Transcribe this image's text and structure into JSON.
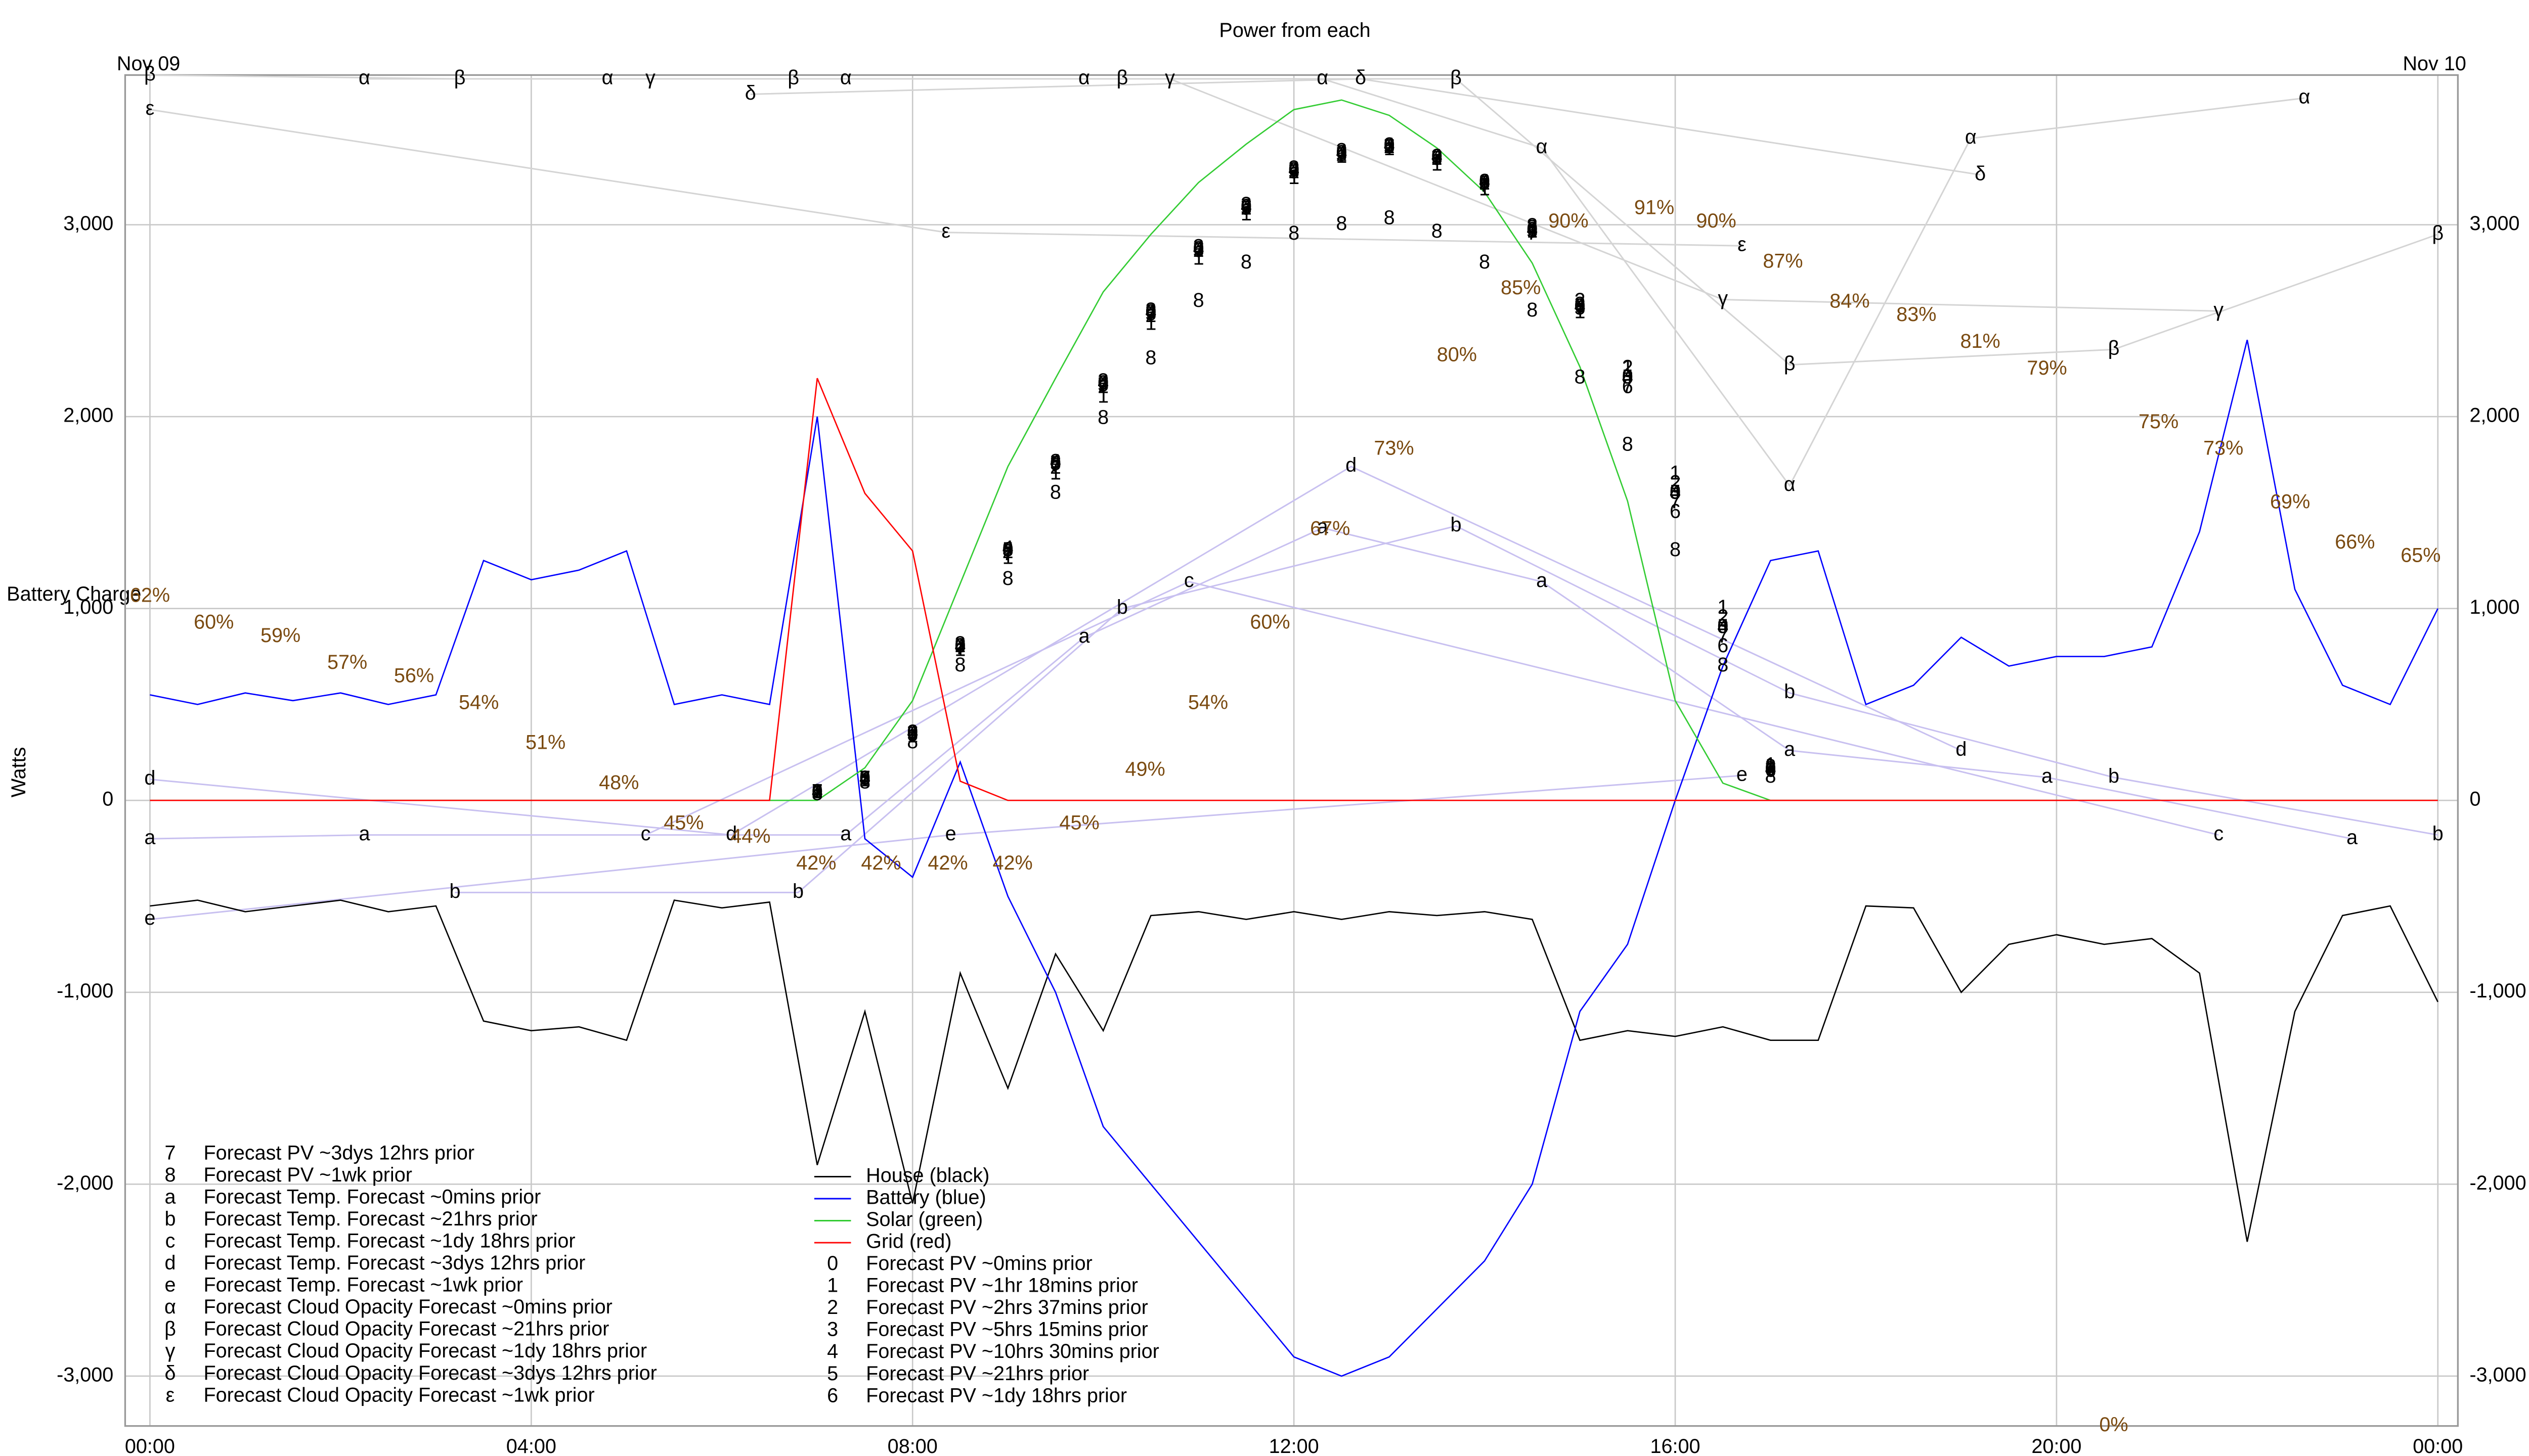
{
  "chart_data": {
    "type": "line",
    "title": "Power from each",
    "annotations": [
      "Nov 09",
      "Nov 10"
    ],
    "y_label": "Watts",
    "xlim": [
      -0.26,
      24.21
    ],
    "xticks": [
      {
        "value": 0,
        "label": "00:00"
      },
      {
        "value": 4,
        "label": "04:00"
      },
      {
        "value": 8,
        "label": "08:00"
      },
      {
        "value": 12,
        "label": "12:00"
      },
      {
        "value": 16,
        "label": "16:00"
      },
      {
        "value": 20,
        "label": "20:00"
      },
      {
        "value": 24,
        "label": "00:00"
      }
    ],
    "ylim": [
      -3260,
      3780
    ],
    "yticks": [
      {
        "value": -3000,
        "label": "-3,000"
      },
      {
        "value": -2000,
        "label": "-2,000"
      },
      {
        "value": -1000,
        "label": "-1,000"
      },
      0,
      {
        "value": 1000,
        "label": "1,000"
      },
      {
        "value": 2000,
        "label": "2,000"
      },
      {
        "value": 3000,
        "label": "3,000"
      }
    ],
    "grid": true,
    "x": [
      0,
      0.5,
      1,
      1.5,
      2,
      2.5,
      3,
      3.5,
      4,
      4.5,
      5,
      5.5,
      6,
      6.5,
      7,
      7.5,
      8,
      8.5,
      9,
      9.5,
      10,
      10.5,
      11,
      11.5,
      12,
      12.5,
      13,
      13.5,
      14,
      14.5,
      15,
      15.5,
      16,
      16.5,
      17,
      17.5,
      18,
      18.5,
      19,
      19.5,
      20,
      20.5,
      21,
      21.5,
      22,
      22.5,
      23,
      23.5,
      24
    ],
    "series": [
      {
        "name": "House (black)",
        "color": "#000000",
        "values": [
          -550,
          -520,
          -580,
          -550,
          -520,
          -580,
          -550,
          -1150,
          -1200,
          -1180,
          -1250,
          -520,
          -560,
          -530,
          -1900,
          -1100,
          -2100,
          -900,
          -1500,
          -800,
          -1200,
          -600,
          -580,
          -620,
          -580,
          -620,
          -580,
          -600,
          -580,
          -620,
          -1250,
          -1200,
          -1230,
          -1180,
          -1250,
          -1250,
          -550,
          -560,
          -1000,
          -750,
          -700,
          -750,
          -720,
          -900,
          -2300,
          -1100,
          -600,
          -550,
          -1050
        ]
      },
      {
        "name": "Battery (blue)",
        "color": "#0000ff",
        "values": [
          550,
          500,
          560,
          520,
          560,
          500,
          550,
          1250,
          1150,
          1200,
          1300,
          500,
          550,
          500,
          2000,
          -200,
          -400,
          200,
          -500,
          -1000,
          -1700,
          -2000,
          -2300,
          -2600,
          -2900,
          -3000,
          -2900,
          -2650,
          -2400,
          -2000,
          -1100,
          -750,
          0,
          700,
          1250,
          1300,
          500,
          600,
          850,
          700,
          750,
          750,
          800,
          1400,
          2400,
          1100,
          600,
          500,
          1000
        ]
      },
      {
        "name": "Solar (green)",
        "color": "#33cc33",
        "values": [
          0,
          0,
          0,
          0,
          0,
          0,
          0,
          0,
          0,
          0,
          0,
          0,
          0,
          0,
          0,
          170,
          520,
          1130,
          1740,
          2200,
          2650,
          2950,
          3220,
          3420,
          3600,
          3650,
          3570,
          3400,
          3170,
          2800,
          2260,
          1560,
          520,
          90,
          0,
          0,
          0,
          0,
          0,
          0,
          0,
          0,
          0,
          0,
          0,
          0,
          0,
          0,
          0
        ]
      },
      {
        "name": "Grid (red)",
        "color": "#ff0000",
        "values": [
          0,
          0,
          0,
          0,
          0,
          0,
          0,
          0,
          0,
          0,
          0,
          0,
          0,
          0,
          2200,
          1600,
          1300,
          100,
          0,
          0,
          0,
          0,
          0,
          0,
          0,
          0,
          0,
          0,
          0,
          0,
          0,
          0,
          0,
          0,
          0,
          0,
          0,
          0,
          0,
          0,
          0,
          0,
          0,
          0,
          0,
          0,
          0,
          0,
          0
        ]
      },
      {
        "name": "Forecast PV ~0mins prior",
        "marker": "0",
        "color": "#000000",
        "x": [
          7,
          7.5,
          8,
          8.5,
          9,
          9.5,
          10,
          10.5,
          11,
          11.5,
          12,
          12.5,
          13,
          13.5,
          14,
          14.5,
          15,
          15.5,
          16,
          16.5,
          17
        ],
        "values": [
          40,
          110,
          350,
          800,
          1300,
          1750,
          2170,
          2540,
          2870,
          3090,
          3280,
          3370,
          3410,
          3350,
          3220,
          2970,
          2570,
          2200,
          1600,
          900,
          160
        ]
      },
      {
        "name": "Forecast PV ~1hr 18mins prior",
        "marker": "1",
        "color": "#000000",
        "x": [
          7,
          7.5,
          8,
          8.5,
          9,
          9.5,
          10,
          10.5,
          11,
          11.5,
          12,
          12.5,
          13,
          13.5,
          14,
          14.5,
          15,
          15.5,
          16,
          16.5,
          17
        ],
        "values": [
          40,
          100,
          330,
          780,
          1260,
          1700,
          2100,
          2480,
          2820,
          3050,
          3240,
          3350,
          3390,
          3310,
          3180,
          2960,
          2540,
          2250,
          1700,
          1000,
          180
        ]
      },
      {
        "name": "Forecast PV ~2hrs 37mins prior",
        "marker": "2",
        "color": "#000000",
        "x": [
          7,
          7.5,
          8,
          8.5,
          9,
          9.5,
          10,
          10.5,
          11,
          11.5,
          12,
          12.5,
          13,
          13.5,
          14,
          14.5,
          15,
          15.5,
          16,
          16.5,
          17
        ],
        "values": [
          40,
          110,
          350,
          800,
          1290,
          1730,
          2150,
          2520,
          2860,
          3080,
          3270,
          3360,
          3400,
          3340,
          3210,
          2990,
          2600,
          2250,
          1650,
          950,
          170
        ]
      },
      {
        "name": "Forecast PV ~5hrs 15mins prior",
        "marker": "3",
        "color": "#000000",
        "x": [
          7,
          7.5,
          8,
          8.5,
          9,
          9.5,
          10,
          10.5,
          11,
          11.5,
          12,
          12.5,
          13,
          13.5,
          14,
          14.5,
          15,
          15.5,
          16,
          16.5,
          17
        ],
        "values": [
          40,
          110,
          350,
          810,
          1300,
          1760,
          2180,
          2550,
          2880,
          3100,
          3290,
          3380,
          3410,
          3350,
          3220,
          2980,
          2580,
          2200,
          1600,
          900,
          160
        ]
      },
      {
        "name": "Forecast PV ~10hrs 30mins prior",
        "marker": "4",
        "color": "#000000",
        "x": [
          7,
          7.5,
          8,
          8.5,
          9,
          9.5,
          10,
          10.5,
          11,
          11.5,
          12,
          12.5,
          13,
          13.5,
          14,
          14.5,
          15,
          15.5,
          16,
          16.5,
          17
        ],
        "values": [
          40,
          110,
          350,
          800,
          1310,
          1760,
          2170,
          2540,
          2870,
          3090,
          3280,
          3370,
          3410,
          3350,
          3220,
          2970,
          2570,
          2200,
          1600,
          900,
          160
        ]
      },
      {
        "name": "Forecast PV ~21hrs prior",
        "marker": "5",
        "color": "#000000",
        "x": [
          7,
          7.5,
          8,
          8.5,
          9,
          9.5,
          10,
          10.5,
          11,
          11.5,
          12,
          12.5,
          13,
          13.5,
          14,
          14.5,
          15,
          15.5,
          16,
          16.5,
          17
        ],
        "values": [
          40,
          110,
          340,
          800,
          1300,
          1750,
          2160,
          2530,
          2860,
          3080,
          3270,
          3360,
          3400,
          3340,
          3210,
          2960,
          2560,
          2200,
          1600,
          900,
          160
        ]
      },
      {
        "name": "Forecast PV ~1dy 18hrs prior",
        "marker": "6",
        "color": "#000000",
        "x": [
          7,
          7.5,
          8,
          8.5,
          9,
          9.5,
          10,
          10.5,
          11,
          11.5,
          12,
          12.5,
          13,
          13.5,
          14,
          14.5,
          15,
          15.5,
          16,
          16.5,
          17
        ],
        "values": [
          40,
          110,
          350,
          800,
          1300,
          1750,
          2170,
          2540,
          2870,
          3090,
          3280,
          3370,
          3410,
          3350,
          3220,
          2970,
          2570,
          2150,
          1500,
          800,
          150
        ]
      },
      {
        "name": "Forecast PV ~3dys 12hrs prior",
        "marker": "7",
        "color": "#000000",
        "x": [
          7,
          7.5,
          8,
          8.5,
          9,
          9.5,
          10,
          10.5,
          11,
          11.5,
          12,
          12.5,
          13,
          13.5,
          14,
          14.5,
          15,
          15.5,
          16,
          16.5,
          17
        ],
        "values": [
          40,
          110,
          340,
          790,
          1280,
          1740,
          2160,
          2530,
          2860,
          3080,
          3270,
          3360,
          3400,
          3340,
          3200,
          2950,
          2560,
          2150,
          1550,
          850,
          150
        ]
      },
      {
        "name": "Forecast PV ~1wk prior",
        "marker": "8",
        "color": "#000000",
        "x": [
          7,
          7.5,
          8,
          8.5,
          9,
          9.5,
          10,
          10.5,
          11,
          11.5,
          12,
          12.5,
          13,
          13.5,
          14,
          14.5,
          15,
          15.5,
          16,
          16.5,
          17
        ],
        "values": [
          30,
          90,
          300,
          700,
          1150,
          1600,
          1990,
          2300,
          2600,
          2800,
          2950,
          3000,
          3030,
          2960,
          2800,
          2550,
          2200,
          1850,
          1300,
          700,
          120
        ]
      },
      {
        "name": "Forecast Temp. Forecast ~0mins prior",
        "marker": "a",
        "color": "#c8c0f0",
        "x": [
          0,
          2.25,
          7.3,
          9.8,
          12.3,
          14.6,
          17.2,
          19.9,
          23.1
        ],
        "values": [
          -200,
          -180,
          -180,
          850,
          1420,
          1140,
          260,
          120,
          -200
        ]
      },
      {
        "name": "Forecast Temp. Forecast ~21hrs prior",
        "marker": "b",
        "color": "#c8c0f0",
        "x": [
          3.2,
          6.8,
          10.2,
          13.7,
          17.2,
          20.6,
          24
        ],
        "values": [
          -480,
          -480,
          1000,
          1430,
          560,
          120,
          -180
        ]
      },
      {
        "name": "Forecast Temp. Forecast ~1dy 18hrs prior",
        "marker": "c",
        "color": "#c8c0f0",
        "x": [
          5.2,
          10.9,
          21.7
        ],
        "values": [
          -180,
          1140,
          -180
        ]
      },
      {
        "name": "Forecast Temp. Forecast ~3dys 12hrs prior",
        "marker": "d",
        "color": "#c8c0f0",
        "x": [
          0,
          6.1,
          12.6,
          19
        ],
        "values": [
          110,
          -180,
          1740,
          260
        ]
      },
      {
        "name": "Forecast Temp. Forecast ~1wk prior",
        "marker": "e",
        "color": "#c8c0f0",
        "x": [
          0,
          8.4,
          16.7
        ],
        "values": [
          -620,
          -180,
          130
        ]
      },
      {
        "name": "Forecast Cloud Opacity Forecast ~0mins prior",
        "marker": "α",
        "color": "#d4d4d4",
        "x": [
          2.25,
          4.8,
          7.3,
          9.8,
          12.3,
          14.6,
          17.2,
          19.1,
          22.6
        ],
        "values": [
          3760,
          3760,
          3760,
          3760,
          3760,
          3400,
          1640,
          3450,
          3660
        ]
      },
      {
        "name": "Forecast Cloud Opacity Forecast ~21hrs prior",
        "marker": "β",
        "color": "#d4d4d4",
        "x": [
          0,
          3.25,
          6.75,
          10.2,
          13.7,
          17.2,
          20.6,
          24
        ],
        "values": [
          3780,
          3760,
          3760,
          3760,
          3760,
          2270,
          2350,
          2950
        ]
      },
      {
        "name": "Forecast Cloud Opacity Forecast ~1dy 18hrs prior",
        "marker": "γ",
        "color": "#d4d4d4",
        "x": [
          5.25,
          10.7,
          16.5,
          21.7
        ],
        "values": [
          3760,
          3760,
          2610,
          2550
        ]
      },
      {
        "name": "Forecast Cloud Opacity Forecast ~3dys 12hrs prior",
        "marker": "δ",
        "color": "#d4d4d4",
        "x": [
          6.3,
          12.7,
          19.2
        ],
        "values": [
          3680,
          3760,
          3260
        ]
      },
      {
        "name": "Forecast Cloud Opacity Forecast ~1wk prior",
        "marker": "ε",
        "color": "#d4d4d4",
        "x": [
          0,
          8.35,
          16.7
        ],
        "values": [
          3600,
          2960,
          2890
        ]
      }
    ],
    "battery_charge": {
      "name": "Battery Charge",
      "color": "#7a4a10",
      "y2lim": [
        0,
        101
      ],
      "x": [
        0,
        0.67,
        1.37,
        2.07,
        2.77,
        3.45,
        4.15,
        4.92,
        5.6,
        6.3,
        6.99,
        7.67,
        8.37,
        9.05,
        9.75,
        10.44,
        11.1,
        11.75,
        12.38,
        13.05,
        13.71,
        14.38,
        14.88,
        15.78,
        16.43,
        17.13,
        17.83,
        18.53,
        19.2,
        19.9,
        20.6,
        21.07,
        21.75,
        22.45,
        23.13,
        23.82
      ],
      "values": [
        62,
        60,
        59,
        57,
        56,
        54,
        51,
        48,
        45,
        44,
        42,
        42,
        42,
        42,
        45,
        49,
        54,
        60,
        67,
        73,
        80,
        85,
        90,
        91,
        90,
        87,
        84,
        83,
        81,
        79,
        0,
        75,
        73,
        69,
        66,
        65
      ],
      "value_labels": [
        "62%",
        "60%",
        "59%",
        "57%",
        "56%",
        "54%",
        "51%",
        "48%",
        "45%",
        "44%",
        "42%",
        "42%",
        "42%",
        "42%",
        "45%",
        "49%",
        "54%",
        "60%",
        "67%",
        "73%",
        "80%",
        "85%",
        "90%",
        "91%",
        "90%",
        "87%",
        "84%",
        "83%",
        "81%",
        "79%",
        "0%",
        "75%",
        "73%",
        "69%",
        "66%",
        "65%"
      ]
    }
  }
}
